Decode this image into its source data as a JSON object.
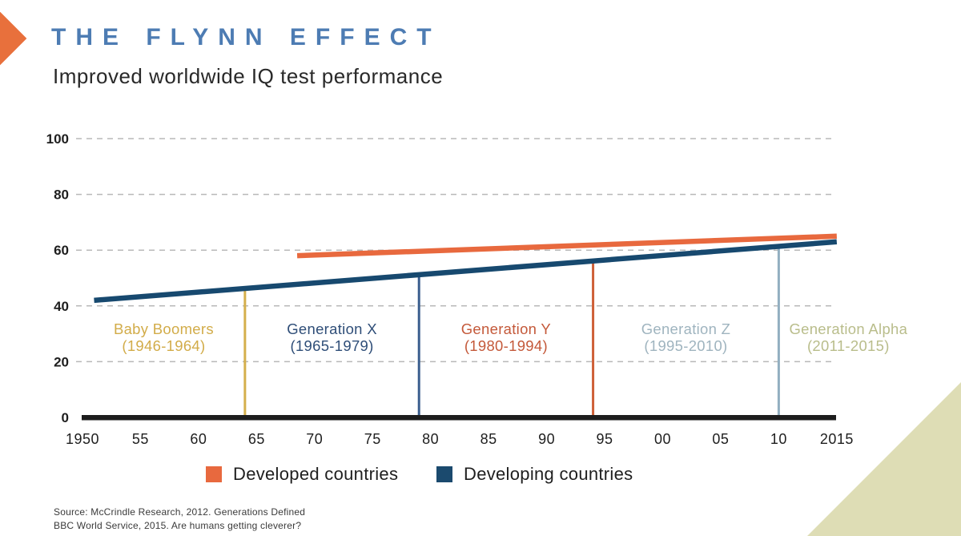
{
  "page": {
    "title": "THE FLYNN EFFECT",
    "subtitle": "Improved worldwide IQ test performance"
  },
  "accent_colors": {
    "title_blue": "#4D7CB3",
    "arrow_orange": "#E8703C",
    "corner_triangle_beige": "#DEDDB5",
    "axis_black": "#1D1D1D",
    "gridline_gray": "#B8B8B8"
  },
  "legend": [
    {
      "label": "Developed countries",
      "color": "#E8693E"
    },
    {
      "label": "Developing countries",
      "color": "#1B4A6E"
    }
  ],
  "source_lines": [
    "Source: McCrindle Research, 2012. Generations Defined",
    "BBC World Service, 2015. Are humans getting cleverer?"
  ],
  "chart_data": {
    "type": "line",
    "title": "THE FLYNN EFFECT",
    "subtitle": "Improved worldwide IQ test performance",
    "x_axis": {
      "range": [
        1950,
        2015
      ],
      "ticks": [
        {
          "year": 1950,
          "label": "1950"
        },
        {
          "year": 1955,
          "label": "55"
        },
        {
          "year": 1960,
          "label": "60"
        },
        {
          "year": 1965,
          "label": "65"
        },
        {
          "year": 1970,
          "label": "70"
        },
        {
          "year": 1975,
          "label": "75"
        },
        {
          "year": 1980,
          "label": "80"
        },
        {
          "year": 1985,
          "label": "85"
        },
        {
          "year": 1990,
          "label": "90"
        },
        {
          "year": 1995,
          "label": "95"
        },
        {
          "year": 2000,
          "label": "00"
        },
        {
          "year": 2005,
          "label": "05"
        },
        {
          "year": 2010,
          "label": "10"
        },
        {
          "year": 2015,
          "label": "2015"
        }
      ]
    },
    "y_axis": {
      "range": [
        0,
        100
      ],
      "ticks": [
        0,
        20,
        40,
        60,
        80,
        100
      ],
      "gridlines": "dashed"
    },
    "series": [
      {
        "name": "Developed countries",
        "color": "#E8693E",
        "points": [
          [
            1968.5,
            58
          ],
          [
            2015,
            65
          ]
        ]
      },
      {
        "name": "Developing countries",
        "color": "#17496F",
        "points": [
          [
            1951,
            42
          ],
          [
            2015,
            63
          ]
        ]
      }
    ],
    "generations": [
      {
        "label": "Baby Boomers",
        "years": "(1946-1964)",
        "color": "#D2AC49",
        "start_year": 1950,
        "end_year": 1964,
        "label_center_year": 1957,
        "divider_color": "#D4AF4C"
      },
      {
        "label": "Generation X",
        "years": "(1965-1979)",
        "color": "#2F4E78",
        "start_year": 1964,
        "end_year": 1979,
        "label_center_year": 1971.5,
        "divider_color": "#3A5E8E"
      },
      {
        "label": "Generation Y",
        "years": "(1980-1994)",
        "color": "#C4593A",
        "start_year": 1979,
        "end_year": 1994,
        "label_center_year": 1986.5,
        "divider_color": "#CE5F37"
      },
      {
        "label": "Generation Z",
        "years": "(1995-2010)",
        "color": "#9FB4BF",
        "start_year": 1994,
        "end_year": 2010,
        "label_center_year": 2002,
        "divider_color": "#92AFC1"
      },
      {
        "label": "Generation Alpha",
        "years": "(2011-2015)",
        "color": "#B9BD8B",
        "start_year": 2010,
        "end_year": 2015,
        "label_center_year": 2016,
        "divider_color": null
      }
    ]
  }
}
